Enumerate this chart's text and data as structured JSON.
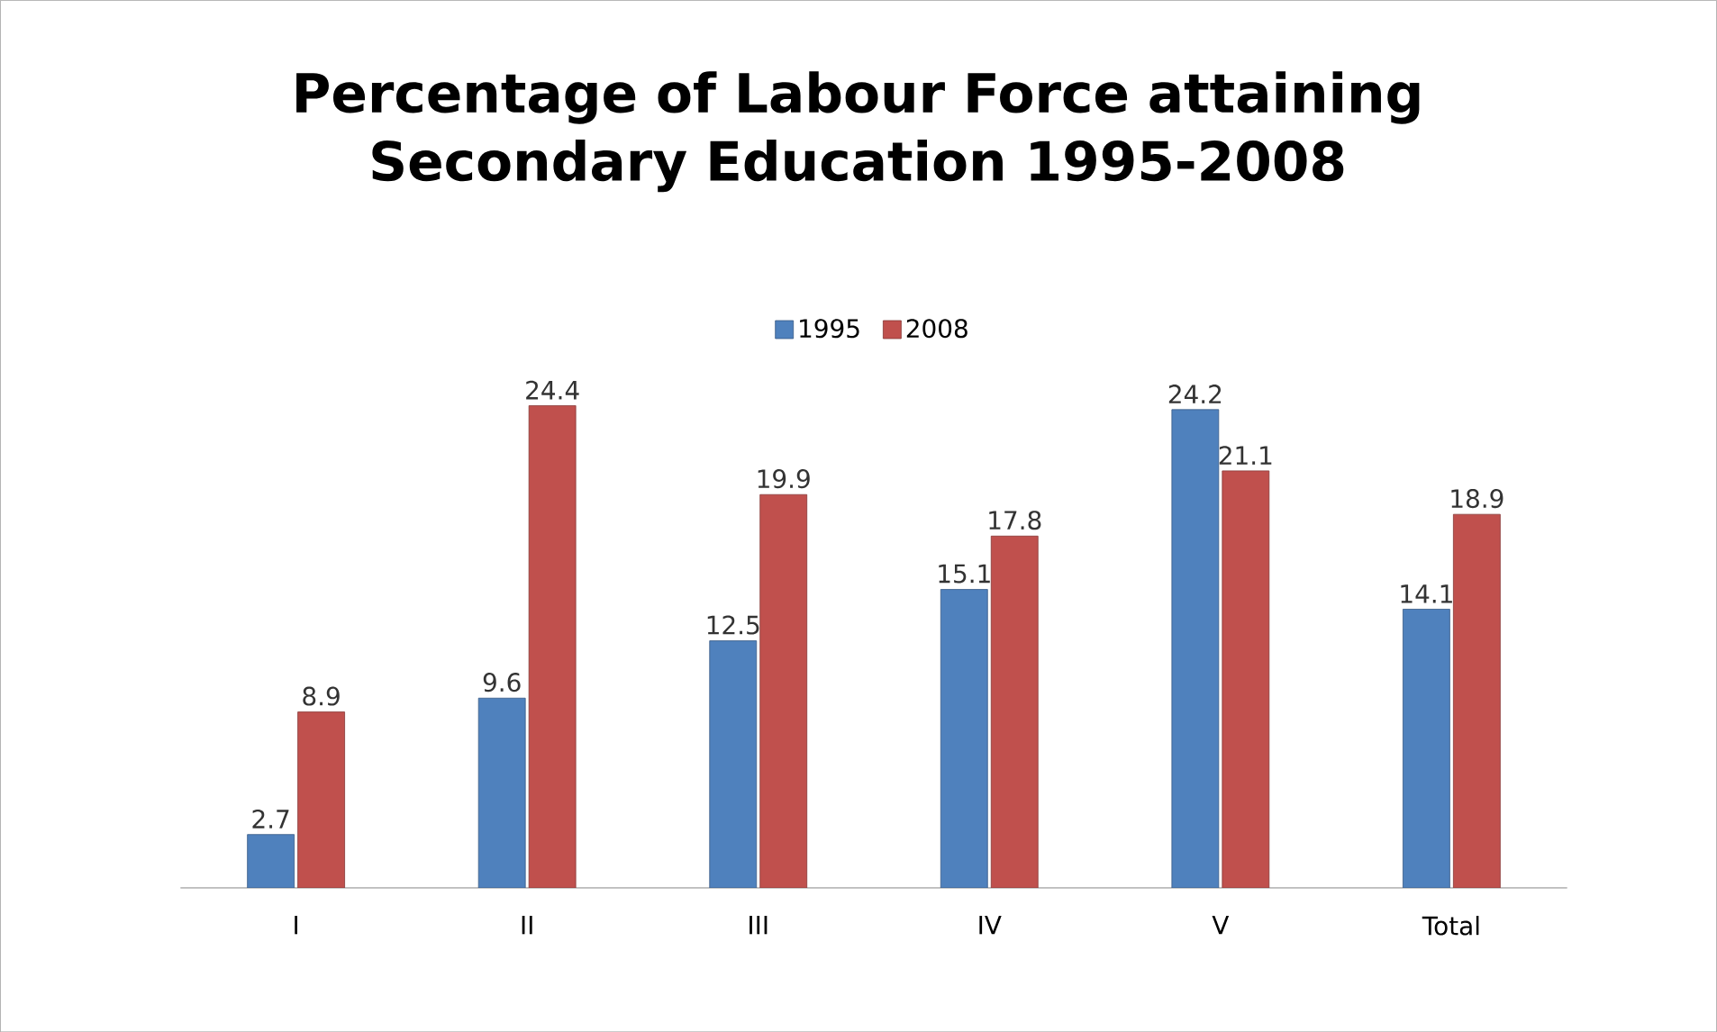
{
  "chart_data": {
    "type": "bar",
    "title": "Percentage of Labour Force attaining Secondary Education 1995-2008",
    "categories": [
      "I",
      "II",
      "III",
      "IV",
      "V",
      "Total"
    ],
    "series": [
      {
        "name": "1995",
        "color": "#4f81bd",
        "values": [
          2.7,
          9.6,
          12.5,
          15.1,
          24.2,
          14.1
        ]
      },
      {
        "name": "2008",
        "color": "#c0504d",
        "values": [
          8.9,
          24.4,
          19.9,
          17.8,
          21.1,
          18.9
        ]
      }
    ],
    "data_labels": true,
    "legend": "top"
  }
}
